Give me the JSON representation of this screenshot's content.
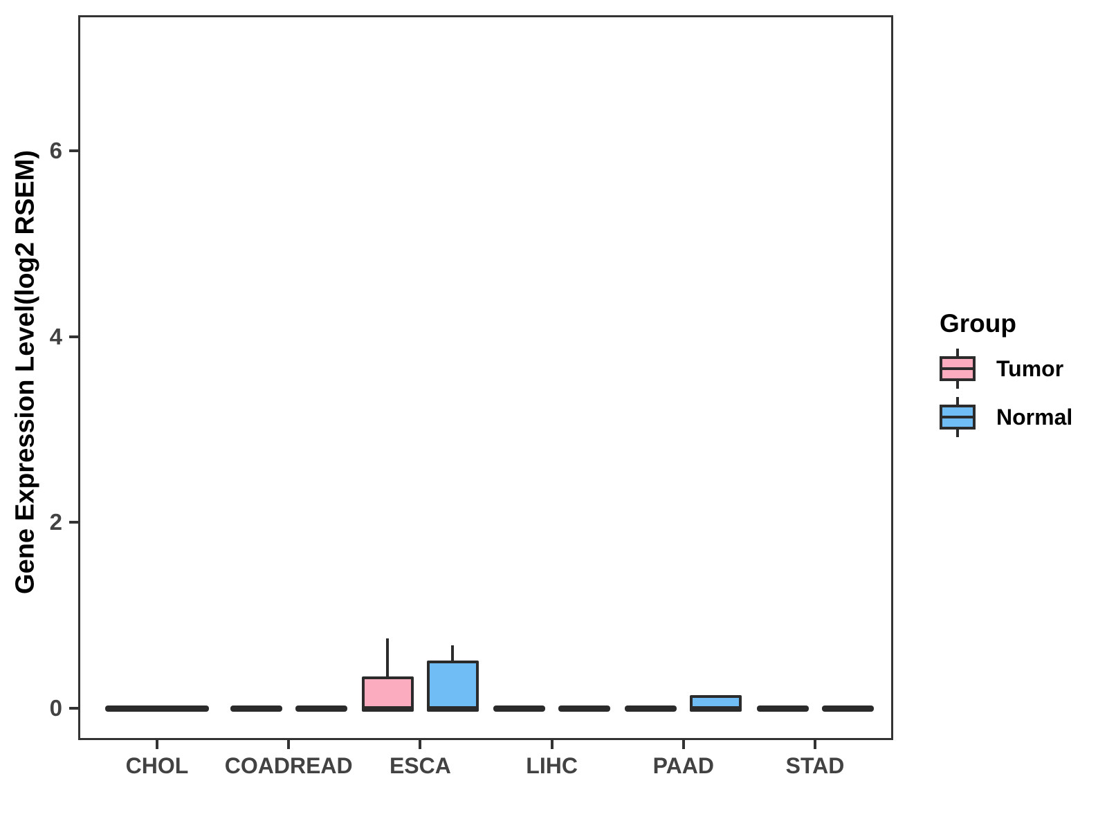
{
  "chart_data": {
    "type": "boxplot",
    "title": "",
    "xlabel": "",
    "ylabel": "Gene Expression Level(log2 RSEM)",
    "categories": [
      "CHOL",
      "COADREAD",
      "ESCA",
      "LIHC",
      "PAAD",
      "STAD"
    ],
    "yticks": [
      0,
      2,
      4,
      6
    ],
    "ylim": [
      -0.34,
      7.46
    ],
    "grid": "off",
    "box_outline_color": "#2B2B2B",
    "legend": {
      "title": "Group",
      "position": "right",
      "entries": [
        {
          "label": "Tumor",
          "color": "#FBACBE"
        },
        {
          "label": "Normal",
          "color": "#70BDF6"
        }
      ]
    },
    "series": [
      {
        "category": "CHOL",
        "group": "Tumor",
        "whisker_low": 0,
        "q1": 0,
        "median": 0,
        "q3": 0,
        "whisker_high": 0,
        "full_width": true
      },
      {
        "category": "COADREAD",
        "group": "Tumor",
        "whisker_low": 0,
        "q1": 0,
        "median": 0,
        "q3": 0,
        "whisker_high": 0,
        "full_width": false
      },
      {
        "category": "COADREAD",
        "group": "Normal",
        "whisker_low": 0,
        "q1": 0,
        "median": 0,
        "q3": 0,
        "whisker_high": 0,
        "full_width": false
      },
      {
        "category": "ESCA",
        "group": "Tumor",
        "whisker_low": 0,
        "q1": 0,
        "median": 0,
        "q3": 0.33,
        "whisker_high": 0.75,
        "full_width": false
      },
      {
        "category": "ESCA",
        "group": "Normal",
        "whisker_low": 0,
        "q1": 0,
        "median": 0,
        "q3": 0.5,
        "whisker_high": 0.68,
        "full_width": false
      },
      {
        "category": "LIHC",
        "group": "Tumor",
        "whisker_low": 0,
        "q1": 0,
        "median": 0,
        "q3": 0,
        "whisker_high": 0,
        "full_width": false
      },
      {
        "category": "LIHC",
        "group": "Normal",
        "whisker_low": 0,
        "q1": 0,
        "median": 0,
        "q3": 0,
        "whisker_high": 0,
        "full_width": false
      },
      {
        "category": "PAAD",
        "group": "Tumor",
        "whisker_low": 0,
        "q1": 0,
        "median": 0,
        "q3": 0,
        "whisker_high": 0,
        "full_width": false
      },
      {
        "category": "PAAD",
        "group": "Normal",
        "whisker_low": 0,
        "q1": 0,
        "median": 0,
        "q3": 0.13,
        "whisker_high": 0.13,
        "full_width": false
      },
      {
        "category": "STAD",
        "group": "Tumor",
        "whisker_low": 0,
        "q1": 0,
        "median": 0,
        "q3": 0,
        "whisker_high": 0,
        "full_width": false
      },
      {
        "category": "STAD",
        "group": "Normal",
        "whisker_low": 0,
        "q1": 0,
        "median": 0,
        "q3": 0,
        "whisker_high": 0,
        "full_width": false
      }
    ]
  }
}
